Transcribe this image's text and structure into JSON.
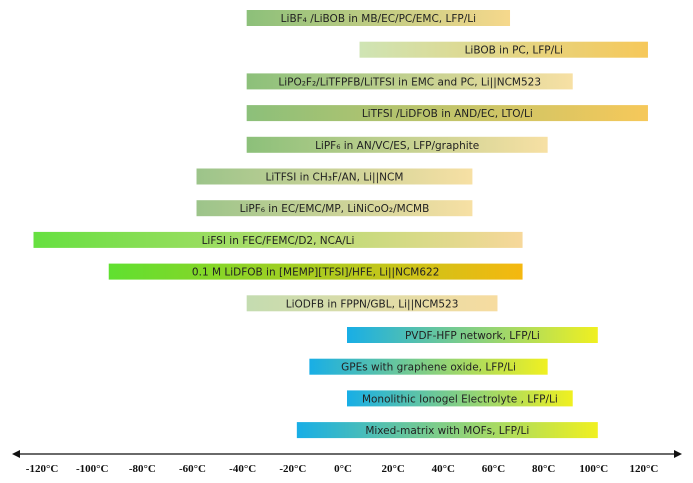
{
  "chart_data": {
    "type": "bar",
    "orientation": "horizontal-range",
    "title": "",
    "xlabel": "",
    "ylabel": "",
    "xlim": [
      -130,
      135
    ],
    "xunit": "°C",
    "ticks": [
      -120,
      -100,
      -80,
      -60,
      -40,
      -20,
      0,
      20,
      40,
      60,
      80,
      100,
      120
    ],
    "tick_labels": [
      "-120°C",
      "-100°C",
      "-80°C",
      "-60°C",
      "-40°C",
      "-20°C",
      "0°C",
      "20°C",
      "40°C",
      "60°C",
      "80°C",
      "100°C",
      "120°C"
    ],
    "grid": false,
    "series": [
      {
        "name": "LiBF₄ /LiBOB in MB/EC/PC/EMC, LFP/Li",
        "min": -40,
        "max": 65,
        "colors": [
          "#8cc07a",
          "#f6d88c"
        ]
      },
      {
        "name": "LiBOB in PC,  LFP/Li",
        "min": 5,
        "max": 120,
        "colors": [
          "#cfe4b4",
          "#f6c85a"
        ]
      },
      {
        "name": "LiPO₂F₂/LiTFPFB/LiTFSI in EMC and PC, Li||NCM523",
        "min": -40,
        "max": 90,
        "colors": [
          "#8cc07a",
          "#f7e0a4"
        ]
      },
      {
        "name": "LiTFSI /LiDFOB in AND/EC, LTO/Li",
        "min": -40,
        "max": 120,
        "colors": [
          "#8cc07a",
          "#f6c85a"
        ]
      },
      {
        "name": "LiPF₆ in AN/VC/ES, LFP/graphite",
        "min": -40,
        "max": 80,
        "colors": [
          "#8cc07a",
          "#f7e0a4"
        ]
      },
      {
        "name": "LiTFSI in CH₃F/AN, Li||NCM",
        "min": -60,
        "max": 50,
        "colors": [
          "#9cc48a",
          "#f7e0a4"
        ]
      },
      {
        "name": "LiPF₆ in EC/EMC/MP, LiNiCoO₂/MCMB",
        "min": -60,
        "max": 50,
        "colors": [
          "#9cc48a",
          "#f7e0a4"
        ]
      },
      {
        "name": "LiFSI in FEC/FEMC/D2, NCA/Li",
        "min": -125,
        "max": 70,
        "colors": [
          "#66e040",
          "#f7d89a"
        ]
      },
      {
        "name": "0.1 M LiDFOB in [MEMP][TFSI]/HFE,  Li||NCM622",
        "min": -95,
        "max": 70,
        "colors": [
          "#60e030",
          "#f5b810"
        ]
      },
      {
        "name": "LiODFB in FPPN/GBL, Li||NCM523",
        "min": -40,
        "max": 60,
        "colors": [
          "#c4dcb0",
          "#f7dca0"
        ]
      },
      {
        "name": "PVDF-HFP network, LFP/Li",
        "min": 0,
        "max": 100,
        "colors": [
          "#18aee6",
          "#f0f020"
        ]
      },
      {
        "name": "GPEs with graphene oxide, LFP/Li",
        "min": -15,
        "max": 80,
        "colors": [
          "#18aee6",
          "#f0f020"
        ]
      },
      {
        "name": "Monolithic Ionogel Electrolyte , LFP/Li",
        "min": 0,
        "max": 90,
        "colors": [
          "#18aee6",
          "#f0f020"
        ]
      },
      {
        "name": "Mixed-matrix with MOFs, LFP/Li",
        "min": -20,
        "max": 100,
        "colors": [
          "#18aee6",
          "#f0f020"
        ]
      }
    ]
  }
}
